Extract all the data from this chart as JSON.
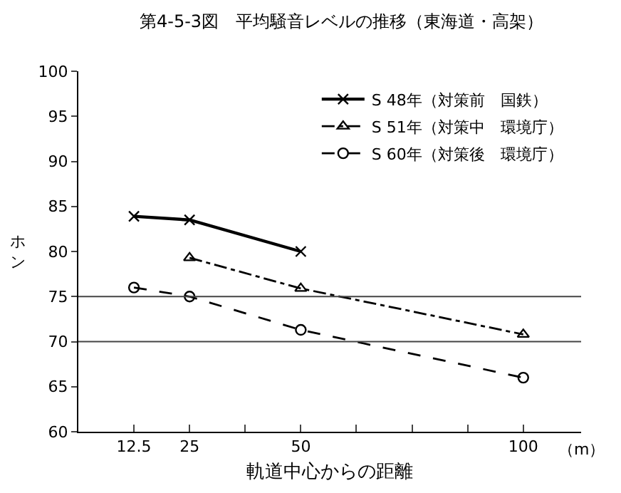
{
  "chart_data": {
    "type": "line",
    "title": "第4-5-3図　平均騒音レベルの推移（東海道・高架）",
    "xlabel": "軌道中心からの距離",
    "ylabel": "ホン",
    "annotations": [
      "（m）"
    ],
    "xlim": [
      0,
      113
    ],
    "xticks": [
      12.5,
      25,
      {
        "value": 37.5,
        "label": null
      },
      50,
      {
        "value": 62.5,
        "label": null
      },
      {
        "value": 75,
        "label": null
      },
      {
        "value": 87.5,
        "label": null
      },
      100
    ],
    "ylim": [
      60,
      100
    ],
    "yticks": [
      60,
      65,
      70,
      75,
      80,
      85,
      90,
      95,
      100
    ],
    "grid": false,
    "legend": "top right",
    "series": [
      {
        "name": "S 48年（対策前　国鉄）",
        "color": "#000000",
        "marker": "cross",
        "line_style": "solid",
        "x": [
          12.5,
          25,
          50
        ],
        "values": [
          83.9,
          83.5,
          80.0
        ]
      },
      {
        "name": "S 51年（対策中　環境庁）",
        "color": "#000000",
        "marker": "triangle",
        "line_style": "dashdot",
        "x": [
          25,
          50,
          100
        ],
        "values": [
          79.3,
          75.9,
          70.8
        ]
      },
      {
        "name": "S 60年（対策後　環境庁）",
        "color": "#000000",
        "marker": "circle",
        "line_style": "dashed",
        "x": [
          12.5,
          25,
          50,
          100
        ],
        "values": [
          76.0,
          75.0,
          71.3,
          66.0
        ]
      }
    ],
    "ref_lines": [
      {
        "axis": "y",
        "value": 75,
        "color": "#444444"
      },
      {
        "axis": "y",
        "value": 70,
        "color": "#444444"
      }
    ]
  }
}
